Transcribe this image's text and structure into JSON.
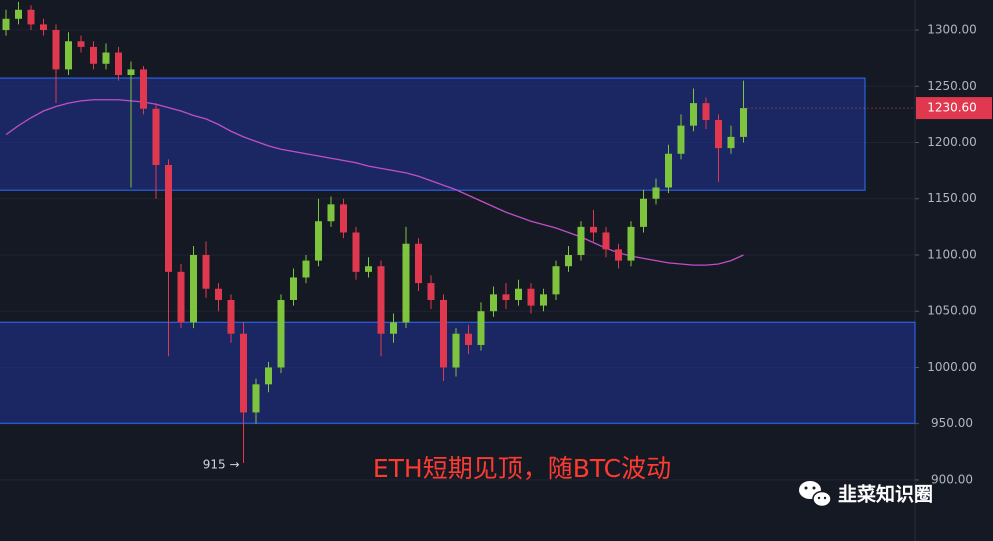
{
  "chart_data": {
    "type": "candlestick",
    "ylim": [
      845.7,
      1326.7
    ],
    "yticks": [
      {
        "value": 900,
        "label": "900.00"
      },
      {
        "value": 950,
        "label": "950.00"
      },
      {
        "value": 1000,
        "label": "1000.00"
      },
      {
        "value": 1050,
        "label": "1050.00"
      },
      {
        "value": 1100,
        "label": "1100.00"
      },
      {
        "value": 1150,
        "label": "1150.00"
      },
      {
        "value": 1200,
        "label": "1200.00"
      },
      {
        "value": 1250,
        "label": "1250.00"
      },
      {
        "value": 1300,
        "label": "1300.00"
      }
    ],
    "grid": true,
    "up_color": "#7fc43f",
    "down_color": "#e0394f",
    "open": [
      1300,
      1310,
      1318,
      1305,
      1300,
      1265,
      1290,
      1285,
      1270,
      1280,
      1260,
      1265,
      1230,
      1180,
      1085,
      1040,
      1100,
      1070,
      1060,
      1030,
      960,
      985,
      1000,
      1060,
      1080,
      1095,
      1130,
      1145,
      1120,
      1085,
      1090,
      1030,
      1040,
      1110,
      1075,
      1060,
      1000,
      1030,
      1020,
      1050,
      1065,
      1060,
      1070,
      1055,
      1065,
      1090,
      1100,
      1125,
      1120,
      1105,
      1095,
      1125,
      1150,
      1160,
      1190,
      1215,
      1235,
      1220,
      1195,
      1205
    ],
    "high": [
      1318,
      1325,
      1322,
      1310,
      1305,
      1298,
      1295,
      1290,
      1288,
      1285,
      1272,
      1268,
      1235,
      1185,
      1092,
      1108,
      1112,
      1075,
      1065,
      1040,
      990,
      1005,
      1065,
      1088,
      1100,
      1150,
      1152,
      1150,
      1125,
      1098,
      1095,
      1048,
      1125,
      1115,
      1082,
      1065,
      1035,
      1038,
      1058,
      1072,
      1075,
      1078,
      1075,
      1070,
      1095,
      1108,
      1130,
      1140,
      1125,
      1110,
      1130,
      1158,
      1168,
      1198,
      1225,
      1248,
      1240,
      1225,
      1215,
      1255
    ],
    "low": [
      1295,
      1305,
      1300,
      1295,
      1235,
      1260,
      1280,
      1265,
      1265,
      1255,
      1160,
      1225,
      1150,
      1010,
      1035,
      1035,
      1062,
      1050,
      1022,
      915,
      950,
      978,
      995,
      1055,
      1075,
      1090,
      1125,
      1115,
      1078,
      1080,
      1010,
      1022,
      1035,
      1068,
      1052,
      988,
      992,
      1012,
      1015,
      1045,
      1052,
      1055,
      1048,
      1050,
      1060,
      1085,
      1095,
      1112,
      1098,
      1088,
      1090,
      1120,
      1145,
      1155,
      1185,
      1210,
      1212,
      1165,
      1190,
      1200
    ],
    "close": [
      1310,
      1318,
      1305,
      1300,
      1265,
      1290,
      1285,
      1270,
      1280,
      1260,
      1265,
      1230,
      1180,
      1085,
      1040,
      1100,
      1070,
      1060,
      1030,
      960,
      985,
      1000,
      1060,
      1080,
      1095,
      1130,
      1145,
      1120,
      1085,
      1090,
      1030,
      1040,
      1110,
      1075,
      1060,
      1000,
      1030,
      1020,
      1050,
      1065,
      1060,
      1070,
      1055,
      1065,
      1090,
      1100,
      1125,
      1120,
      1105,
      1095,
      1125,
      1150,
      1160,
      1190,
      1215,
      1235,
      1220,
      1195,
      1205,
      1230.6
    ],
    "moving_average": {
      "color": "#c04fc8",
      "values": [
        1207,
        1215,
        1222,
        1228,
        1232,
        1235,
        1237,
        1238,
        1238,
        1238,
        1237,
        1236,
        1234,
        1231,
        1228,
        1224,
        1221,
        1216,
        1210,
        1205,
        1201,
        1197,
        1194,
        1192,
        1190,
        1188,
        1186,
        1184,
        1182,
        1179,
        1177,
        1175,
        1173,
        1170,
        1166,
        1162,
        1158,
        1153,
        1148,
        1143,
        1138,
        1134,
        1130,
        1127,
        1124,
        1120,
        1116,
        1111,
        1106,
        1102,
        1099,
        1097,
        1095,
        1093,
        1092,
        1091,
        1091,
        1092,
        1095,
        1100
      ]
    },
    "zones": [
      {
        "from": 1157.6,
        "to": 1257.3
      },
      {
        "from": 950.4,
        "to": 1040.2
      }
    ],
    "last_price": {
      "value": 1230.6,
      "label": "1230.60"
    },
    "annotations": [
      {
        "text": "915 →",
        "value": 915
      }
    ],
    "caption": "ETH短期见顶，随BTC波动",
    "watermark": "韭菜知识圈"
  }
}
